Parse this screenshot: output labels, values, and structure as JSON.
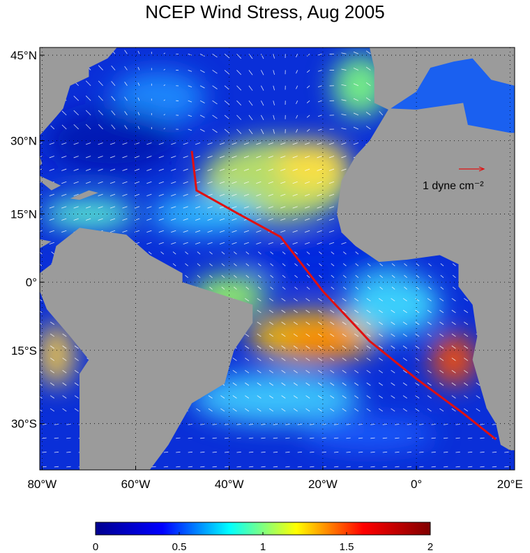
{
  "map": {
    "title": "NCEP Wind Stress, Aug 2005",
    "lonlim": [
      -80.5,
      21
    ],
    "latlim": [
      -38.5,
      46.2
    ],
    "lon_ticks": [
      {
        "value": -80,
        "label": "80°W"
      },
      {
        "value": -60,
        "label": "60°W"
      },
      {
        "value": -40,
        "label": "40°W"
      },
      {
        "value": -20,
        "label": "20°W"
      },
      {
        "value": 0,
        "label": "0°"
      },
      {
        "value": 20,
        "label": "20°E"
      }
    ],
    "lat_ticks": [
      {
        "value": 45,
        "label": "45°N"
      },
      {
        "value": 30,
        "label": "30°N"
      },
      {
        "value": 15,
        "label": "15°N"
      },
      {
        "value": 0,
        "label": "0°"
      },
      {
        "value": -15,
        "label": "15°S"
      },
      {
        "value": -30,
        "label": "30°S"
      }
    ],
    "grid": true,
    "land_color": "#9b9b9b",
    "vector_color": "#ffffff",
    "track_color": "#e01010",
    "legend_label": "1 dyne cm⁻²",
    "colorbar": {
      "lim": [
        0,
        2
      ],
      "ticks": [
        0,
        0.5,
        1,
        1.5,
        2
      ],
      "colors": [
        "#00008f",
        "#0000ff",
        "#00ffff",
        "#ffff00",
        "#ff0000",
        "#800000"
      ]
    }
  }
}
